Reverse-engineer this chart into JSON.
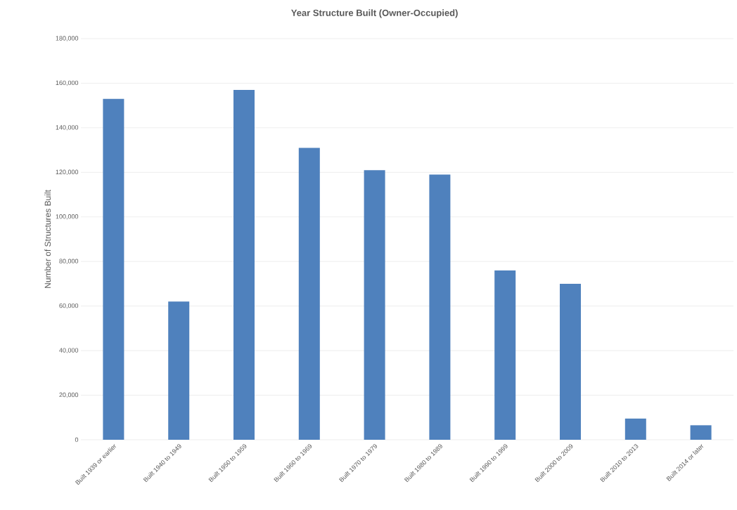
{
  "chart_data": {
    "type": "bar",
    "title": "Year Structure Built (Owner-Occupied)",
    "ylabel": "Number of Structures Built",
    "categories": [
      "Built 1939 or earlier",
      "Built 1940 to 1949",
      "Built 1950 to 1959",
      "Built 1960 to 1969",
      "Built 1970 to 1979",
      "Built 1980 to 1989",
      "Built 1990 to 1999",
      "Built 2000 to 2009",
      "Built 2010 to 2013",
      "Built 2014 or later"
    ],
    "values": [
      153000,
      62000,
      157000,
      131000,
      121000,
      119000,
      76000,
      70000,
      9500,
      6500
    ],
    "color": "#4f81bd",
    "ylim": [
      0,
      180000
    ],
    "yticks": [
      {
        "value": 0,
        "label": "0"
      },
      {
        "value": 20000,
        "label": "20,000"
      },
      {
        "value": 40000,
        "label": "40,000"
      },
      {
        "value": 60000,
        "label": "60,000"
      },
      {
        "value": 80000,
        "label": "80,000"
      },
      {
        "value": 100000,
        "label": "100,000"
      },
      {
        "value": 120000,
        "label": "120,000"
      },
      {
        "value": 140000,
        "label": "140,000"
      },
      {
        "value": 160000,
        "label": "160,000"
      },
      {
        "value": 180000,
        "label": "180,000"
      }
    ],
    "grid": "y"
  }
}
